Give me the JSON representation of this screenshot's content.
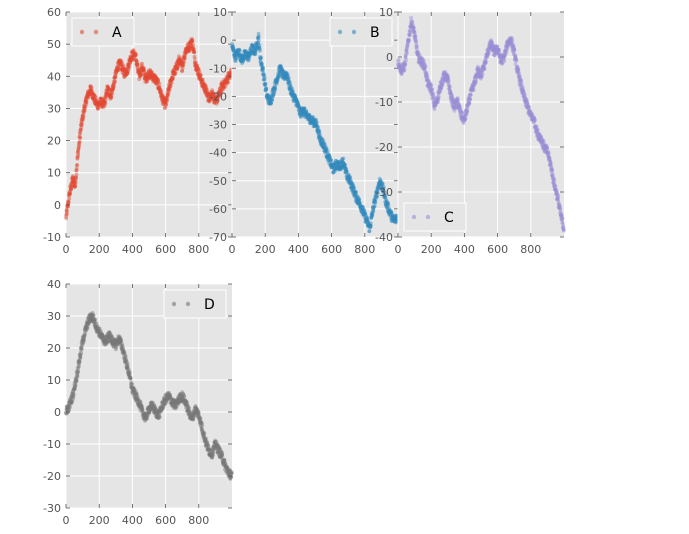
{
  "chart_data": [
    {
      "type": "scatter",
      "series": [
        {
          "name": "A",
          "color": "#E24A33",
          "anchors": [
            [
              0,
              -4
            ],
            [
              20,
              3
            ],
            [
              40,
              8
            ],
            [
              55,
              6
            ],
            [
              70,
              15
            ],
            [
              90,
              24
            ],
            [
              110,
              30
            ],
            [
              130,
              34
            ],
            [
              150,
              36
            ],
            [
              170,
              33
            ],
            [
              190,
              31
            ],
            [
              210,
              32
            ],
            [
              230,
              31
            ],
            [
              250,
              36
            ],
            [
              270,
              34
            ],
            [
              290,
              38
            ],
            [
              310,
              43
            ],
            [
              330,
              44
            ],
            [
              350,
              41
            ],
            [
              370,
              42
            ],
            [
              390,
              46
            ],
            [
              410,
              47
            ],
            [
              420,
              46
            ],
            [
              440,
              40
            ],
            [
              460,
              43
            ],
            [
              480,
              39
            ],
            [
              500,
              41
            ],
            [
              520,
              40
            ],
            [
              540,
              39
            ],
            [
              560,
              37
            ],
            [
              580,
              33
            ],
            [
              600,
              31
            ],
            [
              620,
              36
            ],
            [
              640,
              40
            ],
            [
              660,
              42
            ],
            [
              680,
              45
            ],
            [
              700,
              43
            ],
            [
              720,
              48
            ],
            [
              740,
              49
            ],
            [
              760,
              51
            ],
            [
              780,
              44
            ],
            [
              800,
              41
            ],
            [
              820,
              38
            ],
            [
              840,
              36
            ],
            [
              860,
              33
            ],
            [
              880,
              35
            ],
            [
              900,
              32
            ],
            [
              920,
              34
            ],
            [
              940,
              37
            ],
            [
              960,
              38
            ],
            [
              980,
              40
            ],
            [
              999,
              41
            ]
          ]
        }
      ],
      "legend": "top-left",
      "xlim": [
        0,
        1000
      ],
      "ylim": [
        -10,
        60
      ],
      "xticks": [
        0,
        200,
        400,
        600,
        800
      ],
      "yticks": [
        -10,
        0,
        10,
        20,
        30,
        40,
        50,
        60
      ]
    },
    {
      "type": "scatter",
      "series": [
        {
          "name": "B",
          "color": "#348ABD",
          "anchors": [
            [
              0,
              -2
            ],
            [
              20,
              -6
            ],
            [
              40,
              -4
            ],
            [
              60,
              -7
            ],
            [
              80,
              -5
            ],
            [
              100,
              -6
            ],
            [
              120,
              -3
            ],
            [
              140,
              -4
            ],
            [
              160,
              1
            ],
            [
              170,
              -6
            ],
            [
              190,
              -12
            ],
            [
              210,
              -20
            ],
            [
              230,
              -22
            ],
            [
              250,
              -18
            ],
            [
              270,
              -14
            ],
            [
              290,
              -10
            ],
            [
              310,
              -13
            ],
            [
              330,
              -12
            ],
            [
              350,
              -17
            ],
            [
              370,
              -20
            ],
            [
              390,
              -22
            ],
            [
              410,
              -26
            ],
            [
              430,
              -25
            ],
            [
              450,
              -27
            ],
            [
              470,
              -28
            ],
            [
              490,
              -29
            ],
            [
              510,
              -30
            ],
            [
              530,
              -35
            ],
            [
              550,
              -37
            ],
            [
              570,
              -40
            ],
            [
              590,
              -43
            ],
            [
              610,
              -46
            ],
            [
              630,
              -44
            ],
            [
              650,
              -45
            ],
            [
              670,
              -43
            ],
            [
              690,
              -48
            ],
            [
              710,
              -50
            ],
            [
              730,
              -53
            ],
            [
              750,
              -56
            ],
            [
              770,
              -58
            ],
            [
              790,
              -61
            ],
            [
              810,
              -64
            ],
            [
              830,
              -67
            ],
            [
              850,
              -60
            ],
            [
              870,
              -55
            ],
            [
              890,
              -50
            ],
            [
              910,
              -53
            ],
            [
              930,
              -58
            ],
            [
              950,
              -61
            ],
            [
              970,
              -64
            ],
            [
              999,
              -63
            ]
          ]
        }
      ],
      "legend": "top-right",
      "xlim": [
        0,
        1000
      ],
      "ylim": [
        -70,
        10
      ],
      "xticks": [
        0,
        200,
        400,
        600,
        800
      ],
      "yticks": [
        -70,
        -60,
        -50,
        -40,
        -30,
        -20,
        -10,
        0,
        10
      ]
    },
    {
      "type": "scatter",
      "series": [
        {
          "name": "C",
          "color": "#988ED5",
          "anchors": [
            [
              0,
              -1
            ],
            [
              20,
              -3
            ],
            [
              40,
              -2
            ],
            [
              60,
              3
            ],
            [
              80,
              8
            ],
            [
              100,
              5
            ],
            [
              120,
              0
            ],
            [
              140,
              -1
            ],
            [
              160,
              -2
            ],
            [
              180,
              -6
            ],
            [
              200,
              -7
            ],
            [
              220,
              -11
            ],
            [
              240,
              -9
            ],
            [
              260,
              -6
            ],
            [
              280,
              -4
            ],
            [
              300,
              -5
            ],
            [
              320,
              -9
            ],
            [
              340,
              -11
            ],
            [
              360,
              -10
            ],
            [
              380,
              -13
            ],
            [
              400,
              -14
            ],
            [
              420,
              -11
            ],
            [
              440,
              -8
            ],
            [
              460,
              -6
            ],
            [
              480,
              -3
            ],
            [
              500,
              -4
            ],
            [
              520,
              -2
            ],
            [
              540,
              1
            ],
            [
              560,
              3
            ],
            [
              580,
              1
            ],
            [
              600,
              2
            ],
            [
              620,
              -1
            ],
            [
              640,
              0
            ],
            [
              660,
              3
            ],
            [
              680,
              4
            ],
            [
              700,
              1
            ],
            [
              720,
              -3
            ],
            [
              740,
              -6
            ],
            [
              760,
              -9
            ],
            [
              780,
              -11
            ],
            [
              800,
              -13
            ],
            [
              820,
              -14
            ],
            [
              840,
              -17
            ],
            [
              860,
              -18
            ],
            [
              880,
              -20
            ],
            [
              900,
              -21
            ],
            [
              920,
              -24
            ],
            [
              940,
              -28
            ],
            [
              960,
              -31
            ],
            [
              980,
              -35
            ],
            [
              999,
              -38
            ]
          ]
        }
      ],
      "legend": "bottom-left",
      "xlim": [
        0,
        1000
      ],
      "ylim": [
        -40,
        10
      ],
      "xticks": [
        0,
        200,
        400,
        600,
        800
      ],
      "yticks": [
        -40,
        -30,
        -20,
        -10,
        0,
        10
      ]
    },
    {
      "type": "scatter",
      "series": [
        {
          "name": "D",
          "color": "#777777",
          "anchors": [
            [
              0,
              0
            ],
            [
              20,
              2
            ],
            [
              40,
              5
            ],
            [
              60,
              10
            ],
            [
              80,
              16
            ],
            [
              100,
              22
            ],
            [
              120,
              26
            ],
            [
              140,
              29
            ],
            [
              160,
              30
            ],
            [
              180,
              27
            ],
            [
              200,
              25
            ],
            [
              220,
              23
            ],
            [
              240,
              22
            ],
            [
              260,
              24
            ],
            [
              280,
              22
            ],
            [
              300,
              21
            ],
            [
              320,
              23
            ],
            [
              340,
              20
            ],
            [
              360,
              16
            ],
            [
              380,
              12
            ],
            [
              400,
              7
            ],
            [
              420,
              5
            ],
            [
              440,
              3
            ],
            [
              460,
              0
            ],
            [
              480,
              -2
            ],
            [
              500,
              1
            ],
            [
              520,
              2
            ],
            [
              540,
              0
            ],
            [
              560,
              -1
            ],
            [
              580,
              2
            ],
            [
              600,
              4
            ],
            [
              620,
              5
            ],
            [
              640,
              3
            ],
            [
              660,
              2
            ],
            [
              680,
              4
            ],
            [
              700,
              5
            ],
            [
              720,
              3
            ],
            [
              740,
              0
            ],
            [
              760,
              -2
            ],
            [
              780,
              1
            ],
            [
              800,
              -1
            ],
            [
              820,
              -5
            ],
            [
              840,
              -9
            ],
            [
              860,
              -12
            ],
            [
              880,
              -13
            ],
            [
              900,
              -10
            ],
            [
              920,
              -12
            ],
            [
              940,
              -14
            ],
            [
              960,
              -17
            ],
            [
              980,
              -19
            ],
            [
              999,
              -20
            ]
          ]
        }
      ],
      "legend": "top-right",
      "xlim": [
        0,
        1000
      ],
      "ylim": [
        -30,
        40
      ],
      "xticks": [
        0,
        200,
        400,
        600,
        800
      ],
      "yticks": [
        -30,
        -20,
        -10,
        0,
        10,
        20,
        30,
        40
      ]
    }
  ]
}
